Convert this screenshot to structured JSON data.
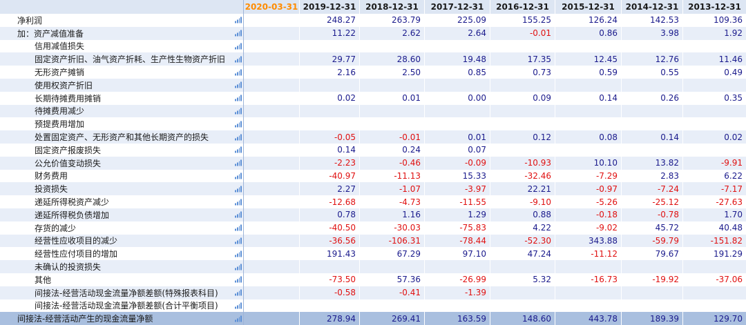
{
  "columns": {
    "highlight": "2020-03-31",
    "years": [
      "2019-12-31",
      "2018-12-31",
      "2017-12-31",
      "2016-12-31",
      "2015-12-31",
      "2014-12-31",
      "2013-12-31"
    ]
  },
  "rows": [
    {
      "label": "净利润",
      "level": 0,
      "values": [
        "248.27",
        "263.79",
        "225.09",
        "155.25",
        "126.24",
        "142.53",
        "109.36"
      ]
    },
    {
      "label": "加：资产减值准备",
      "level": 0,
      "values": [
        "11.22",
        "2.62",
        "2.64",
        "-0.01",
        "0.86",
        "3.98",
        "1.92"
      ]
    },
    {
      "label": "信用减值损失",
      "level": 1,
      "values": [
        "",
        "",
        "",
        "",
        "",
        "",
        ""
      ]
    },
    {
      "label": "固定资产折旧、油气资产折耗、生产性生物资产折旧",
      "level": 1,
      "values": [
        "29.77",
        "28.60",
        "19.48",
        "17.35",
        "12.45",
        "12.76",
        "11.46"
      ]
    },
    {
      "label": "无形资产摊销",
      "level": 1,
      "values": [
        "2.16",
        "2.50",
        "0.85",
        "0.73",
        "0.59",
        "0.55",
        "0.49"
      ]
    },
    {
      "label": "使用权资产折旧",
      "level": 1,
      "values": [
        "",
        "",
        "",
        "",
        "",
        "",
        ""
      ]
    },
    {
      "label": "长期待摊费用摊销",
      "level": 1,
      "values": [
        "0.02",
        "0.01",
        "0.00",
        "0.09",
        "0.14",
        "0.26",
        "0.35"
      ]
    },
    {
      "label": "待摊费用减少",
      "level": 1,
      "values": [
        "",
        "",
        "",
        "",
        "",
        "",
        ""
      ]
    },
    {
      "label": "预提费用增加",
      "level": 1,
      "values": [
        "",
        "",
        "",
        "",
        "",
        "",
        ""
      ]
    },
    {
      "label": "处置固定资产、无形资产和其他长期资产的损失",
      "level": 1,
      "values": [
        "-0.05",
        "-0.01",
        "0.01",
        "0.12",
        "0.08",
        "0.14",
        "0.02"
      ]
    },
    {
      "label": "固定资产报废损失",
      "level": 1,
      "values": [
        "0.14",
        "0.24",
        "0.07",
        "",
        "",
        "",
        ""
      ]
    },
    {
      "label": "公允价值变动损失",
      "level": 1,
      "values": [
        "-2.23",
        "-0.46",
        "-0.09",
        "-10.93",
        "10.10",
        "13.82",
        "-9.91"
      ]
    },
    {
      "label": "财务费用",
      "level": 1,
      "values": [
        "-40.97",
        "-11.13",
        "15.33",
        "-32.46",
        "-7.29",
        "2.83",
        "6.22"
      ]
    },
    {
      "label": "投资损失",
      "level": 1,
      "values": [
        "2.27",
        "-1.07",
        "-3.97",
        "22.21",
        "-0.97",
        "-7.24",
        "-7.17"
      ]
    },
    {
      "label": "递延所得税资产减少",
      "level": 1,
      "values": [
        "-12.68",
        "-4.73",
        "-11.55",
        "-9.10",
        "-5.26",
        "-25.12",
        "-27.63"
      ]
    },
    {
      "label": "递延所得税负债增加",
      "level": 1,
      "values": [
        "0.78",
        "1.16",
        "1.29",
        "0.88",
        "-0.18",
        "-0.78",
        "1.70"
      ]
    },
    {
      "label": "存货的减少",
      "level": 1,
      "values": [
        "-40.50",
        "-30.03",
        "-75.83",
        "4.22",
        "-9.02",
        "45.72",
        "40.48"
      ]
    },
    {
      "label": "经营性应收项目的减少",
      "level": 1,
      "values": [
        "-36.56",
        "-106.31",
        "-78.44",
        "-52.30",
        "343.88",
        "-59.79",
        "-151.82"
      ]
    },
    {
      "label": "经营性应付项目的增加",
      "level": 1,
      "values": [
        "191.43",
        "67.29",
        "97.10",
        "47.24",
        "-11.12",
        "79.67",
        "191.29"
      ]
    },
    {
      "label": "未确认的投资损失",
      "level": 1,
      "values": [
        "",
        "",
        "",
        "",
        "",
        "",
        ""
      ]
    },
    {
      "label": "其他",
      "level": 1,
      "values": [
        "-73.50",
        "57.36",
        "-26.99",
        "5.32",
        "-16.73",
        "-19.92",
        "-37.06"
      ]
    },
    {
      "label": "间接法-经营活动现金流量净额差额(特殊报表科目)",
      "level": 1,
      "values": [
        "-0.58",
        "-0.41",
        "-1.39",
        "",
        "",
        "",
        ""
      ]
    },
    {
      "label": "间接法-经营活动现金流量净额差额(合计平衡项目)",
      "level": 1,
      "values": [
        "",
        "",
        "",
        "",
        "",
        "",
        ""
      ]
    },
    {
      "label": "间接法-经营活动产生的现金流量净额",
      "level": 0,
      "total": true,
      "values": [
        "278.94",
        "269.41",
        "163.59",
        "148.60",
        "443.78",
        "189.39",
        "129.70"
      ]
    }
  ],
  "colors": {
    "highlight_header": "#ff8c00",
    "positive": "#1a1a8c",
    "negative": "#e01010",
    "total_row": "#a9bfdf"
  },
  "icons": {
    "row_chart": "bar-chart-icon"
  }
}
